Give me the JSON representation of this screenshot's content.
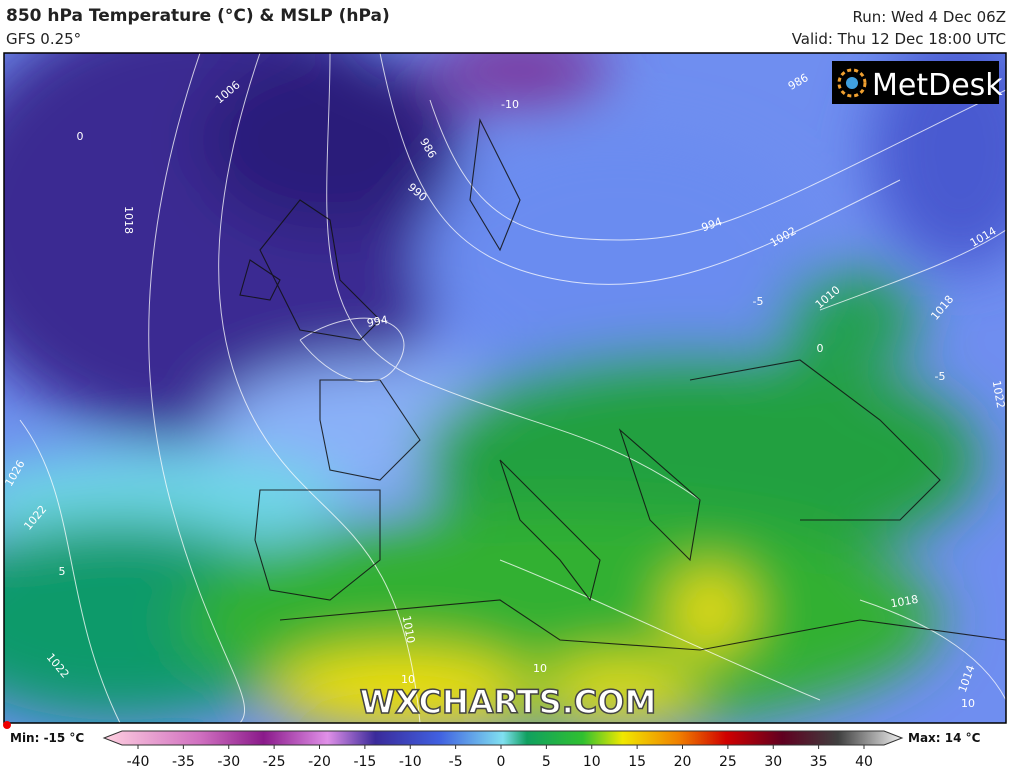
{
  "header": {
    "title": "850 hPa Temperature (°C) & MSLP (hPa)",
    "subtitle": "GFS 0.25°",
    "run": "Run: Wed 4 Dec 06Z",
    "valid": "Valid: Thu 12 Dec 18:00 UTC"
  },
  "logo": "MetDesk",
  "watermark": "WXCHARTS.COM",
  "map_labels": [
    "1006",
    "1018",
    "986",
    "990",
    "994",
    "986",
    "994",
    "1002",
    "1010",
    "1014",
    "1018",
    "1022",
    "1026",
    "1022",
    "1022",
    "1018",
    "1014",
    "1010",
    "10",
    "10",
    "10",
    "-5",
    "0",
    "-5",
    "-10",
    "0",
    "5"
  ],
  "legend": {
    "min": "Min: -15 °C",
    "max": "Max: 14 °C",
    "ticks": [
      -40,
      -35,
      -30,
      -25,
      -20,
      -15,
      -10,
      -5,
      0,
      5,
      10,
      15,
      20,
      25,
      30,
      35,
      40
    ]
  }
}
